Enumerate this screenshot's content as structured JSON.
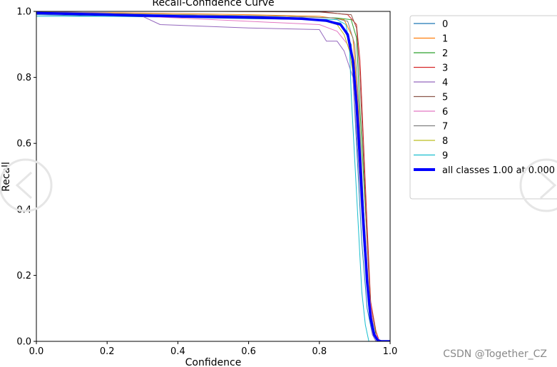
{
  "chart_data": {
    "type": "line",
    "title": "Recall-Confidence Curve",
    "xlabel": "Confidence",
    "ylabel": "Recall",
    "xlim": [
      0.0,
      1.0
    ],
    "ylim": [
      0.0,
      1.0
    ],
    "xticks": [
      "0.0",
      "0.2",
      "0.4",
      "0.6",
      "0.8",
      "1.0"
    ],
    "yticks": [
      "0.0",
      "0.2",
      "0.4",
      "0.6",
      "0.8",
      "1.0"
    ],
    "grid": false,
    "legend": "outside-right",
    "series": [
      {
        "name": "0",
        "color": "#1f77b4",
        "width": 1,
        "points": [
          [
            0,
            0.99
          ],
          [
            0.2,
            0.985
          ],
          [
            0.4,
            0.982
          ],
          [
            0.6,
            0.978
          ],
          [
            0.8,
            0.975
          ],
          [
            0.86,
            0.965
          ],
          [
            0.89,
            0.9
          ],
          [
            0.905,
            0.6
          ],
          [
            0.92,
            0.3
          ],
          [
            0.935,
            0.1
          ],
          [
            0.95,
            0.02
          ],
          [
            0.96,
            0
          ]
        ]
      },
      {
        "name": "1",
        "color": "#ff7f0e",
        "width": 1,
        "points": [
          [
            0,
            0.998
          ],
          [
            0.3,
            0.995
          ],
          [
            0.6,
            0.99
          ],
          [
            0.8,
            0.985
          ],
          [
            0.87,
            0.975
          ],
          [
            0.895,
            0.92
          ],
          [
            0.91,
            0.7
          ],
          [
            0.925,
            0.4
          ],
          [
            0.94,
            0.15
          ],
          [
            0.955,
            0.03
          ],
          [
            0.97,
            0
          ]
        ]
      },
      {
        "name": "2",
        "color": "#2ca02c",
        "width": 1,
        "points": [
          [
            0,
            0.998
          ],
          [
            0.4,
            0.99
          ],
          [
            0.7,
            0.985
          ],
          [
            0.85,
            0.98
          ],
          [
            0.89,
            0.975
          ],
          [
            0.905,
            0.92
          ],
          [
            0.915,
            0.7
          ],
          [
            0.93,
            0.4
          ],
          [
            0.945,
            0.12
          ],
          [
            0.96,
            0.02
          ],
          [
            0.97,
            0
          ]
        ]
      },
      {
        "name": "3",
        "color": "#d62728",
        "width": 1,
        "points": [
          [
            0,
            1.0
          ],
          [
            0.5,
            1.0
          ],
          [
            0.8,
            1.0
          ],
          [
            0.88,
            0.99
          ],
          [
            0.905,
            0.96
          ],
          [
            0.915,
            0.85
          ],
          [
            0.925,
            0.6
          ],
          [
            0.935,
            0.35
          ],
          [
            0.945,
            0.12
          ],
          [
            0.96,
            0.03
          ],
          [
            0.97,
            0
          ]
        ]
      },
      {
        "name": "4",
        "color": "#9467bd",
        "width": 1,
        "points": [
          [
            0,
            1.0
          ],
          [
            0.2,
            0.995
          ],
          [
            0.3,
            0.985
          ],
          [
            0.35,
            0.96
          ],
          [
            0.6,
            0.95
          ],
          [
            0.8,
            0.945
          ],
          [
            0.82,
            0.91
          ],
          [
            0.85,
            0.91
          ],
          [
            0.87,
            0.88
          ],
          [
            0.895,
            0.8
          ],
          [
            0.91,
            0.55
          ],
          [
            0.925,
            0.3
          ],
          [
            0.94,
            0.1
          ],
          [
            0.95,
            0.02
          ],
          [
            0.96,
            0
          ]
        ]
      },
      {
        "name": "5",
        "color": "#8c564b",
        "width": 1,
        "points": [
          [
            0,
            1.0
          ],
          [
            0.5,
            1.0
          ],
          [
            0.8,
            0.998
          ],
          [
            0.89,
            0.99
          ],
          [
            0.905,
            0.95
          ],
          [
            0.915,
            0.8
          ],
          [
            0.925,
            0.55
          ],
          [
            0.935,
            0.3
          ],
          [
            0.945,
            0.1
          ],
          [
            0.955,
            0.02
          ],
          [
            0.965,
            0
          ]
        ]
      },
      {
        "name": "6",
        "color": "#e377c2",
        "width": 1,
        "points": [
          [
            0,
            0.995
          ],
          [
            0.3,
            0.985
          ],
          [
            0.6,
            0.97
          ],
          [
            0.8,
            0.96
          ],
          [
            0.85,
            0.94
          ],
          [
            0.88,
            0.9
          ],
          [
            0.895,
            0.85
          ],
          [
            0.91,
            0.65
          ],
          [
            0.925,
            0.4
          ],
          [
            0.94,
            0.15
          ],
          [
            0.955,
            0.03
          ],
          [
            0.97,
            0
          ]
        ]
      },
      {
        "name": "7",
        "color": "#7f7f7f",
        "width": 1,
        "points": [
          [
            0,
            0.998
          ],
          [
            0.4,
            0.99
          ],
          [
            0.7,
            0.985
          ],
          [
            0.84,
            0.98
          ],
          [
            0.88,
            0.97
          ],
          [
            0.9,
            0.9
          ],
          [
            0.912,
            0.7
          ],
          [
            0.925,
            0.4
          ],
          [
            0.94,
            0.12
          ],
          [
            0.955,
            0.02
          ],
          [
            0.965,
            0
          ]
        ]
      },
      {
        "name": "8",
        "color": "#bcbd22",
        "width": 1,
        "points": [
          [
            0,
            0.998
          ],
          [
            0.3,
            0.99
          ],
          [
            0.6,
            0.98
          ],
          [
            0.8,
            0.975
          ],
          [
            0.85,
            0.96
          ],
          [
            0.87,
            0.93
          ],
          [
            0.885,
            0.88
          ],
          [
            0.9,
            0.78
          ],
          [
            0.912,
            0.6
          ],
          [
            0.925,
            0.35
          ],
          [
            0.94,
            0.1
          ],
          [
            0.955,
            0.02
          ],
          [
            0.965,
            0
          ]
        ]
      },
      {
        "name": "9",
        "color": "#17becf",
        "width": 1,
        "points": [
          [
            0,
            0.985
          ],
          [
            0.2,
            0.985
          ],
          [
            0.4,
            0.985
          ],
          [
            0.7,
            0.98
          ],
          [
            0.85,
            0.975
          ],
          [
            0.875,
            0.96
          ],
          [
            0.885,
            0.9
          ],
          [
            0.89,
            0.75
          ],
          [
            0.9,
            0.55
          ],
          [
            0.91,
            0.35
          ],
          [
            0.92,
            0.15
          ],
          [
            0.93,
            0.05
          ],
          [
            0.94,
            0
          ]
        ]
      },
      {
        "name": "all classes 1.00 at 0.000",
        "color": "#0000ff",
        "width": 3.5,
        "points": [
          [
            0,
            0.995
          ],
          [
            0.2,
            0.99
          ],
          [
            0.4,
            0.985
          ],
          [
            0.6,
            0.982
          ],
          [
            0.75,
            0.978
          ],
          [
            0.82,
            0.972
          ],
          [
            0.86,
            0.96
          ],
          [
            0.88,
            0.93
          ],
          [
            0.895,
            0.85
          ],
          [
            0.905,
            0.72
          ],
          [
            0.915,
            0.55
          ],
          [
            0.925,
            0.35
          ],
          [
            0.935,
            0.18
          ],
          [
            0.945,
            0.07
          ],
          [
            0.955,
            0.02
          ],
          [
            0.965,
            0.003
          ],
          [
            0.975,
            0
          ],
          [
            1.0,
            0
          ]
        ]
      }
    ]
  },
  "watermark": "CSDN @Together_CZ"
}
